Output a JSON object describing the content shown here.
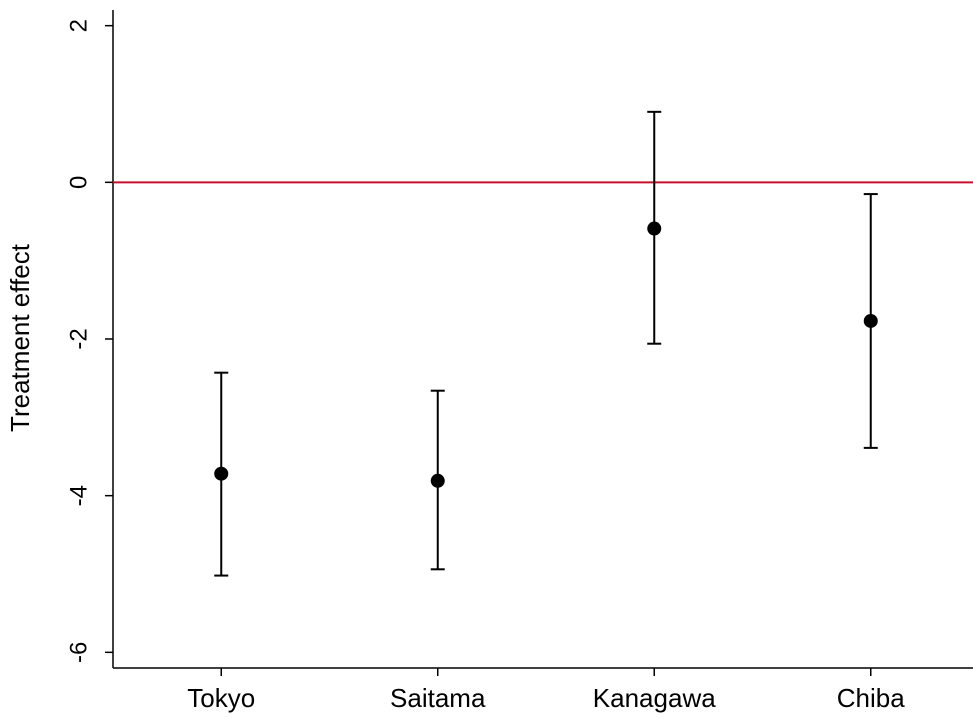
{
  "chart_data": {
    "type": "errorbar",
    "y_label": "Treatment effect",
    "categories": [
      "Tokyo",
      "Saitama",
      "Kanagawa",
      "Chiba"
    ],
    "values": [
      -3.72,
      -3.81,
      -0.59,
      -1.77
    ],
    "lower": [
      -5.02,
      -4.94,
      -2.06,
      -3.39
    ],
    "upper": [
      -2.43,
      -2.66,
      0.9,
      -0.15
    ],
    "color": "#000000",
    "reference_line": {
      "value": 0,
      "color": "#c8102e"
    },
    "ylim": [
      -6.2,
      2.2
    ],
    "yticks": [
      2,
      0,
      -2,
      -4,
      -6
    ],
    "grid": false
  }
}
